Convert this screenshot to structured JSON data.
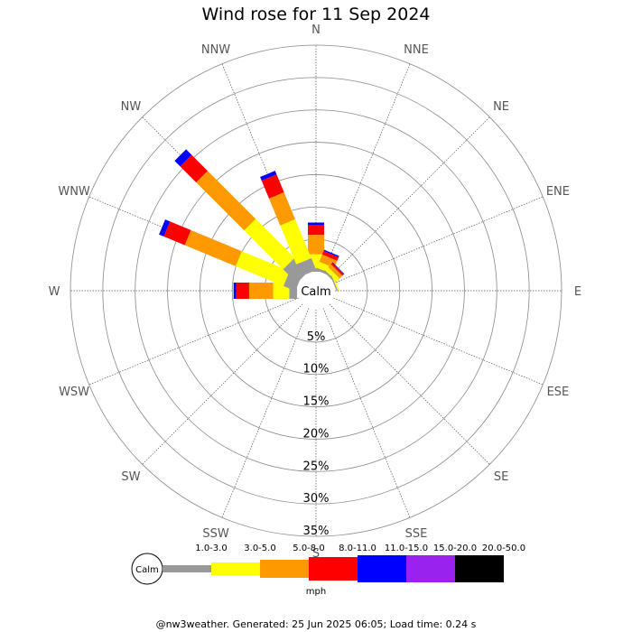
{
  "title": "Wind rose for 11 Sep 2024",
  "footer": "@nw3weather. Generated: 25 Jun 2025 06:05; Load time: 0.24 s",
  "chart_data": {
    "type": "windrose",
    "title": "Wind rose for 11 Sep 2024",
    "directions": [
      "N",
      "NNE",
      "NE",
      "ENE",
      "E",
      "ESE",
      "SE",
      "SSE",
      "S",
      "SSW",
      "SW",
      "WSW",
      "W",
      "WNW",
      "NW",
      "NNW"
    ],
    "radial_ticks": [
      "5%",
      "10%",
      "15%",
      "20%",
      "25%",
      "30%",
      "35%"
    ],
    "radial_max": 35,
    "center_label": "Calm",
    "unit_label": "mph",
    "bins": [
      {
        "label": "1.0-3.0",
        "color": "#999999"
      },
      {
        "label": "3.0-5.0",
        "color": "#ffff00"
      },
      {
        "label": "5.0-8.0",
        "color": "#ff9900"
      },
      {
        "label": "8.0-11.0",
        "color": "#ff0000"
      },
      {
        "label": "11.0-15.0",
        "color": "#0000ff"
      },
      {
        "label": "15.0-20.0",
        "color": "#9922ee"
      },
      {
        "label": "20.0-50.0",
        "color": "#000000"
      }
    ],
    "series": [
      {
        "direction": "N",
        "values": [
          0.5,
          2.2,
          3.0,
          1.5,
          0.4,
          0,
          0
        ]
      },
      {
        "direction": "NNE",
        "values": [
          0.4,
          1.0,
          1.2,
          0.6,
          0.2,
          0,
          0
        ]
      },
      {
        "direction": "NE",
        "values": [
          0.3,
          0.7,
          0.6,
          0.3,
          0.1,
          0,
          0
        ]
      },
      {
        "direction": "ENE",
        "values": [
          0.2,
          0.2,
          0,
          0,
          0,
          0,
          0
        ]
      },
      {
        "direction": "E",
        "values": [
          0,
          0,
          0,
          0,
          0,
          0,
          0
        ]
      },
      {
        "direction": "ESE",
        "values": [
          0,
          0,
          0,
          0,
          0,
          0,
          0
        ]
      },
      {
        "direction": "SE",
        "values": [
          0,
          0,
          0,
          0,
          0,
          0,
          0
        ]
      },
      {
        "direction": "SSE",
        "values": [
          0,
          0,
          0,
          0,
          0,
          0,
          0
        ]
      },
      {
        "direction": "S",
        "values": [
          0,
          0,
          0,
          0,
          0,
          0,
          0
        ]
      },
      {
        "direction": "SSW",
        "values": [
          0,
          0,
          0,
          0,
          0,
          0,
          0
        ]
      },
      {
        "direction": "SW",
        "values": [
          0,
          0,
          0,
          0,
          0,
          0,
          0
        ]
      },
      {
        "direction": "WSW",
        "values": [
          0,
          0,
          0,
          0,
          0,
          0,
          0
        ]
      },
      {
        "direction": "W",
        "values": [
          1.2,
          2.5,
          3.7,
          2.0,
          0.4,
          0,
          0
        ]
      },
      {
        "direction": "WNW",
        "values": [
          2.0,
          8.0,
          8.5,
          3.5,
          0.8,
          0,
          0
        ]
      },
      {
        "direction": "NW",
        "values": [
          3.0,
          8.5,
          10.5,
          3.5,
          1.2,
          0,
          0
        ]
      },
      {
        "direction": "NNW",
        "values": [
          2.0,
          6.5,
          4.5,
          3.0,
          0.6,
          0,
          0
        ]
      }
    ]
  }
}
